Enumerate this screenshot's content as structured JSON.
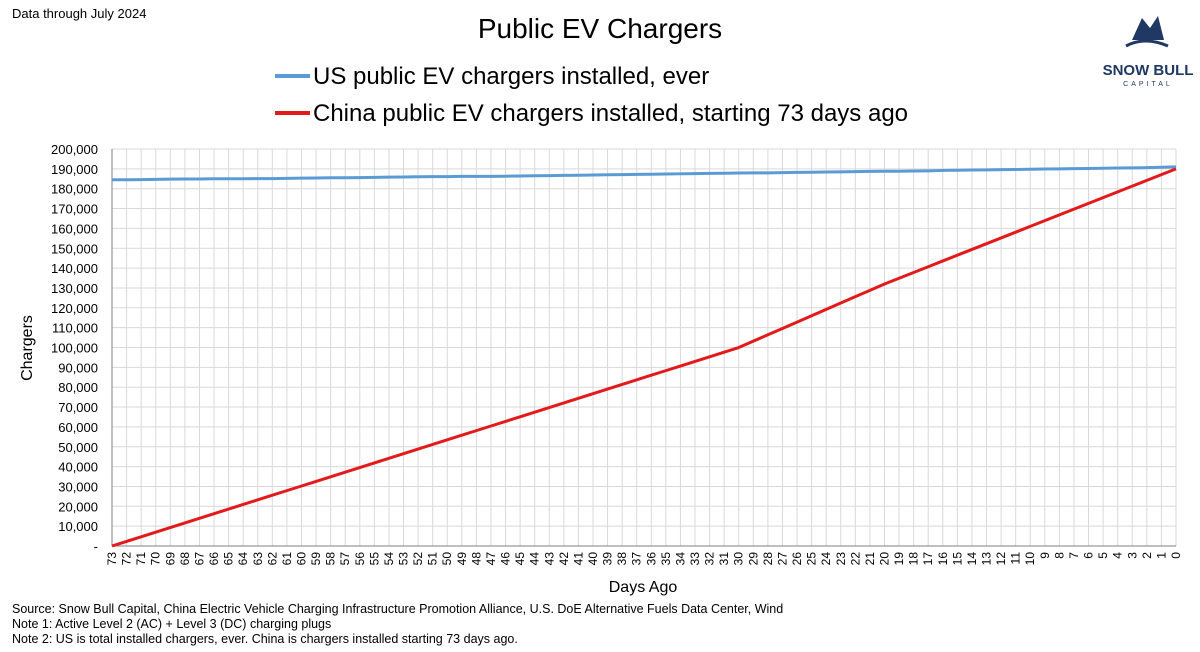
{
  "chart_data": {
    "type": "line",
    "title": "Public EV Chargers",
    "note": "Data through July 2024",
    "xlabel": "Days Ago",
    "ylabel": "Chargers",
    "categories": [
      "73",
      "72",
      "71",
      "70",
      "69",
      "68",
      "67",
      "66",
      "65",
      "64",
      "63",
      "62",
      "61",
      "60",
      "59",
      "58",
      "57",
      "56",
      "55",
      "54",
      "53",
      "52",
      "51",
      "50",
      "49",
      "48",
      "47",
      "46",
      "45",
      "44",
      "43",
      "42",
      "41",
      "40",
      "39",
      "38",
      "37",
      "36",
      "35",
      "34",
      "33",
      "32",
      "31",
      "30",
      "29",
      "28",
      "27",
      "26",
      "25",
      "24",
      "23",
      "22",
      "21",
      "20",
      "19",
      "18",
      "17",
      "16",
      "15",
      "14",
      "13",
      "12",
      "11",
      "10",
      "9",
      "8",
      "7",
      "6",
      "5",
      "4",
      "3",
      "2",
      "1",
      "0"
    ],
    "series": [
      {
        "name": "US public EV chargers installed, ever",
        "color": "#5b9bd5",
        "values": [
          184500,
          184500,
          184600,
          184700,
          184800,
          184900,
          184900,
          185000,
          185000,
          185000,
          185100,
          185100,
          185200,
          185300,
          185400,
          185500,
          185500,
          185600,
          185700,
          185800,
          185900,
          186000,
          186100,
          186100,
          186200,
          186200,
          186200,
          186300,
          186400,
          186500,
          186600,
          186700,
          186800,
          186900,
          187000,
          187100,
          187200,
          187300,
          187400,
          187500,
          187600,
          187700,
          187800,
          187900,
          188000,
          188000,
          188100,
          188200,
          188300,
          188400,
          188500,
          188600,
          188700,
          188800,
          188800,
          188900,
          189000,
          189200,
          189300,
          189400,
          189500,
          189600,
          189700,
          189800,
          189900,
          190000,
          190100,
          190200,
          190300,
          190400,
          190500,
          190600,
          190800,
          191000
        ]
      },
      {
        "name": "China public EV chargers installed, starting 73 days ago",
        "color": "#e31a1c",
        "values": [
          0,
          2325,
          4650,
          6975,
          9300,
          11625,
          13950,
          16275,
          18600,
          20925,
          23250,
          25575,
          27900,
          30225,
          32550,
          34875,
          37200,
          39525,
          41850,
          44175,
          46500,
          48825,
          51150,
          53475,
          55800,
          58125,
          60450,
          62775,
          65100,
          67425,
          69750,
          72075,
          74400,
          76725,
          79050,
          81375,
          83700,
          86025,
          88350,
          90675,
          93000,
          95325,
          97650,
          99975,
          103200,
          106400,
          109600,
          112800,
          116000,
          119200,
          122400,
          125600,
          128800,
          132000,
          134900,
          137800,
          140700,
          143600,
          146500,
          149400,
          152300,
          155200,
          158100,
          161000,
          163900,
          166800,
          169700,
          172600,
          175500,
          178400,
          181300,
          184200,
          187100,
          190000
        ]
      }
    ],
    "ylim": [
      0,
      200000
    ],
    "yticks": [
      {
        "value": 0,
        "label": "-"
      },
      {
        "value": 10000,
        "label": "10,000"
      },
      {
        "value": 20000,
        "label": "20,000"
      },
      {
        "value": 30000,
        "label": "30,000"
      },
      {
        "value": 40000,
        "label": "40,000"
      },
      {
        "value": 50000,
        "label": "50,000"
      },
      {
        "value": 60000,
        "label": "60,000"
      },
      {
        "value": 70000,
        "label": "70,000"
      },
      {
        "value": 80000,
        "label": "80,000"
      },
      {
        "value": 90000,
        "label": "90,000"
      },
      {
        "value": 100000,
        "label": "100,000"
      },
      {
        "value": 110000,
        "label": "110,000"
      },
      {
        "value": 120000,
        "label": "120,000"
      },
      {
        "value": 130000,
        "label": "130,000"
      },
      {
        "value": 140000,
        "label": "140,000"
      },
      {
        "value": 150000,
        "label": "150,000"
      },
      {
        "value": 160000,
        "label": "160,000"
      },
      {
        "value": 170000,
        "label": "170,000"
      },
      {
        "value": 180000,
        "label": "180,000"
      },
      {
        "value": 190000,
        "label": "190,000"
      },
      {
        "value": 200000,
        "label": "200,000"
      }
    ],
    "grid": true,
    "legend": "top",
    "footnotes": [
      "Source: Snow Bull Capital, China Electric Vehicle Charging Infrastructure Promotion Alliance, U.S. DoE Alternative Fuels Data Center, Wind",
      "Note 1: Active Level 2 (AC) + Level 3 (DC) charging plugs",
      "Note 2: US is total installed chargers, ever. China is chargers installed starting 73 days ago."
    ],
    "logo": {
      "name": "SNOW BULL",
      "tagline": "CAPITAL"
    }
  }
}
